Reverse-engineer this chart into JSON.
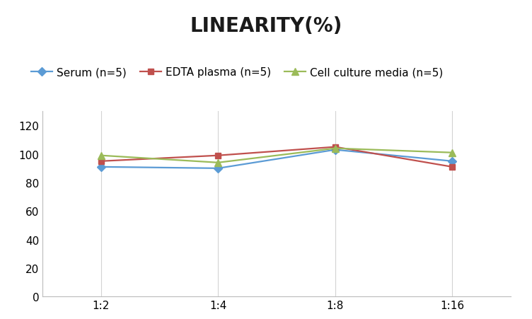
{
  "title": "LINEARITY(%)",
  "x_labels": [
    "1:2",
    "1:4",
    "1:8",
    "1:16"
  ],
  "x_positions": [
    0,
    1,
    2,
    3
  ],
  "series": [
    {
      "label": "Serum (n=5)",
      "values": [
        91,
        90,
        103,
        95
      ],
      "color": "#5B9BD5",
      "marker": "D",
      "markersize": 6,
      "linewidth": 1.6
    },
    {
      "label": "EDTA plasma (n=5)",
      "values": [
        95,
        99,
        105,
        91
      ],
      "color": "#C0504D",
      "marker": "s",
      "markersize": 6,
      "linewidth": 1.6
    },
    {
      "label": "Cell culture media (n=5)",
      "values": [
        99,
        94,
        104,
        101
      ],
      "color": "#9BBB59",
      "marker": "^",
      "markersize": 7,
      "linewidth": 1.6
    }
  ],
  "ylim": [
    0,
    130
  ],
  "yticks": [
    0,
    20,
    40,
    60,
    80,
    100,
    120
  ],
  "background_color": "#FFFFFF",
  "grid_color": "#D3D3D3",
  "title_fontsize": 20,
  "tick_fontsize": 11,
  "legend_fontsize": 11
}
